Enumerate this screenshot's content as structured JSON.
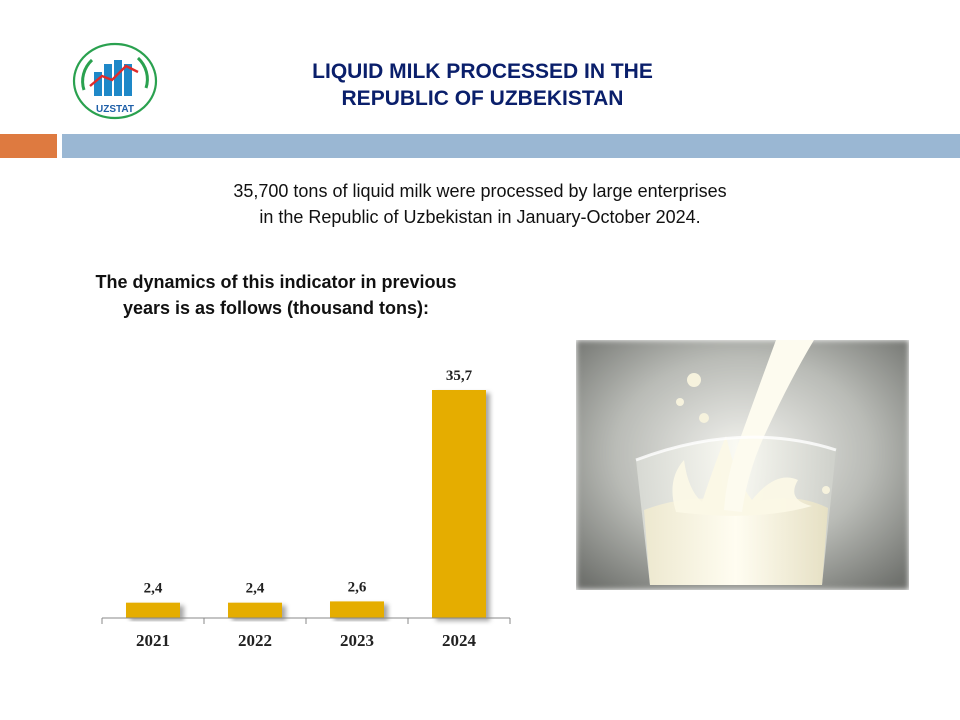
{
  "header": {
    "logo_text": "UZSTAT",
    "title_line1": "LIQUID MILK PROCESSED IN THE",
    "title_line2": "REPUBLIC OF UZBEKISTAN"
  },
  "summary": {
    "line1": "35,700 tons of liquid milk were processed by large enterprises",
    "line2": "in the Republic of Uzbekistan in January-October 2024."
  },
  "subtitle": {
    "line1": "The dynamics of this indicator in previous",
    "line2": "years is as follows (thousand tons):"
  },
  "colors": {
    "accent_orange": "#de7a40",
    "accent_blue": "#9ab7d3",
    "bar": "#e5ad00",
    "title": "#0a1f6b"
  },
  "chart_data": {
    "type": "bar",
    "categories": [
      "2021",
      "2022",
      "2023",
      "2024"
    ],
    "values": [
      2.4,
      2.4,
      2.6,
      35.7
    ],
    "data_labels": [
      "2,4",
      "2,4",
      "2,6",
      "35,7"
    ],
    "unit": "thousand tons",
    "ylim": [
      0,
      40
    ],
    "title": "",
    "xlabel": "",
    "ylabel": "",
    "grid": false
  }
}
